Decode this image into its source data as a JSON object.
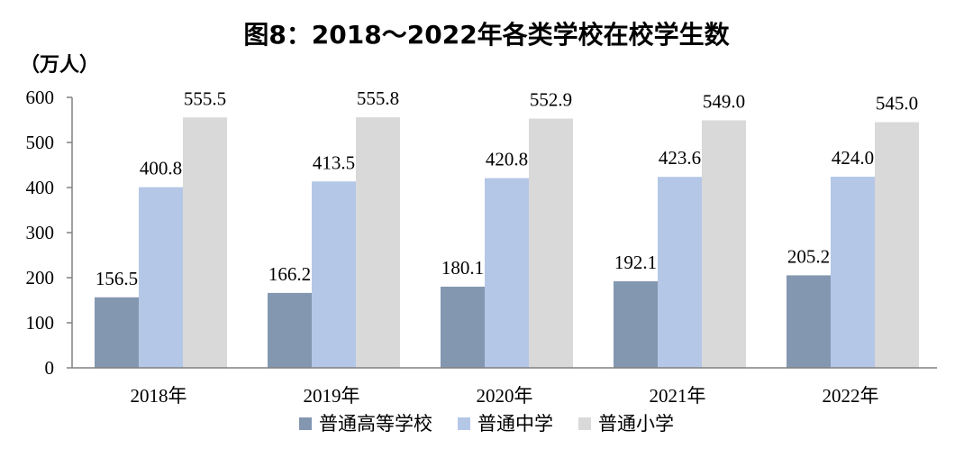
{
  "chart_data": {
    "type": "bar",
    "title": "图8：2018～2022年各类学校在校学生数",
    "unit_label": "（万人）",
    "ylim": [
      0,
      600
    ],
    "y_ticks": [
      0,
      100,
      200,
      300,
      400,
      500,
      600
    ],
    "categories": [
      "2018年",
      "2019年",
      "2020年",
      "2021年",
      "2022年"
    ],
    "series": [
      {
        "name": "普通高等学校",
        "color": "#8497B0",
        "values": [
          156.5,
          166.2,
          180.1,
          192.1,
          205.2
        ],
        "labels": [
          "156.5",
          "166.2",
          "180.1",
          "192.1",
          "205.2"
        ]
      },
      {
        "name": "普通中学",
        "color": "#B4C7E7",
        "values": [
          400.8,
          413.5,
          420.8,
          423.6,
          424.0
        ],
        "labels": [
          "400.8",
          "413.5",
          "420.8",
          "423.6",
          "424.0"
        ]
      },
      {
        "name": "普通小学",
        "color": "#D9D9D9",
        "values": [
          555.5,
          555.8,
          552.9,
          549.0,
          545.0
        ],
        "labels": [
          "555.5",
          "555.8",
          "552.9",
          "549.0",
          "545.0"
        ]
      }
    ],
    "legend_position": "bottom",
    "grid": false
  }
}
